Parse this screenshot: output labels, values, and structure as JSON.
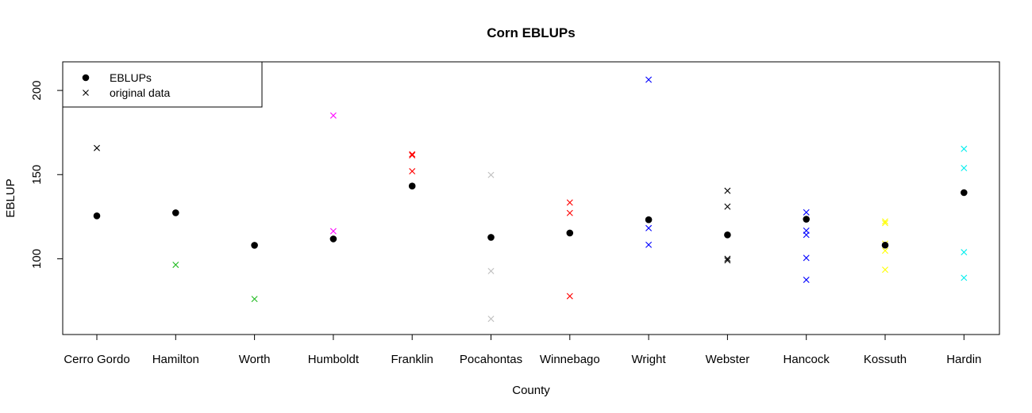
{
  "chart_data": {
    "type": "scatter",
    "title": "Corn EBLUPs",
    "xlabel": "County",
    "ylabel": "EBLUP",
    "categories": [
      "Cerro Gordo",
      "Hamilton",
      "Worth",
      "Humboldt",
      "Franklin",
      "Pocahontas",
      "Winnebago",
      "Wright",
      "Webster",
      "Hancock",
      "Kossuth",
      "Hardin"
    ],
    "yticks": [
      100,
      150,
      200
    ],
    "ylim": [
      55,
      217
    ],
    "grid": false,
    "legend": {
      "placement": "top-left",
      "entries": [
        {
          "label": "EBLUPs",
          "marker": "filled-circle",
          "color": "#000000"
        },
        {
          "label": "original data",
          "marker": "cross",
          "color": "#000000"
        }
      ]
    },
    "series": [
      {
        "marker": "filled-circle",
        "color": "#000000",
        "values": [
          125.5,
          127.3,
          108.0,
          111.8,
          143.2,
          112.7,
          115.3,
          123.2,
          114.2,
          123.5,
          108.1,
          139.3
        ]
      },
      {
        "marker": "cross",
        "points": [
          {
            "county": "Cerro Gordo",
            "color": "#000000",
            "y": [
              165.8
            ]
          },
          {
            "county": "Hamilton",
            "color": "#22bb22",
            "y": [
              96.4
            ]
          },
          {
            "county": "Worth",
            "color": "#22bb22",
            "y": [
              76.1
            ]
          },
          {
            "county": "Humboldt",
            "color": "#ff00ff",
            "y": [
              185.1,
              116.4
            ]
          },
          {
            "county": "Franklin",
            "color": "#ff0000",
            "y": [
              162.1,
              161.5,
              152.0
            ]
          },
          {
            "county": "Pocahontas",
            "color": "#bebebe",
            "y": [
              149.8,
              92.7,
              64.3
            ]
          },
          {
            "county": "Winnebago",
            "color": "#ff0000",
            "y": [
              133.4,
              127.2,
              77.8
            ]
          },
          {
            "county": "Wright",
            "color": "#0000ff",
            "y": [
              206.4,
              118.2,
              108.3
            ]
          },
          {
            "county": "Webster",
            "color": "#000000",
            "y": [
              140.4,
              131.0,
              100.0,
              99.1
            ]
          },
          {
            "county": "Hancock",
            "color": "#0000ff",
            "y": [
              127.6,
              116.7,
              114.2,
              100.5,
              87.5
            ]
          },
          {
            "county": "Kossuth",
            "color": "#ffff00",
            "y": [
              122.2,
              121.2,
              109.0,
              104.8,
              93.5
            ]
          },
          {
            "county": "Hardin",
            "color": "#00eeee",
            "y": [
              165.3,
              153.9,
              103.9,
              88.7
            ]
          }
        ]
      }
    ]
  }
}
